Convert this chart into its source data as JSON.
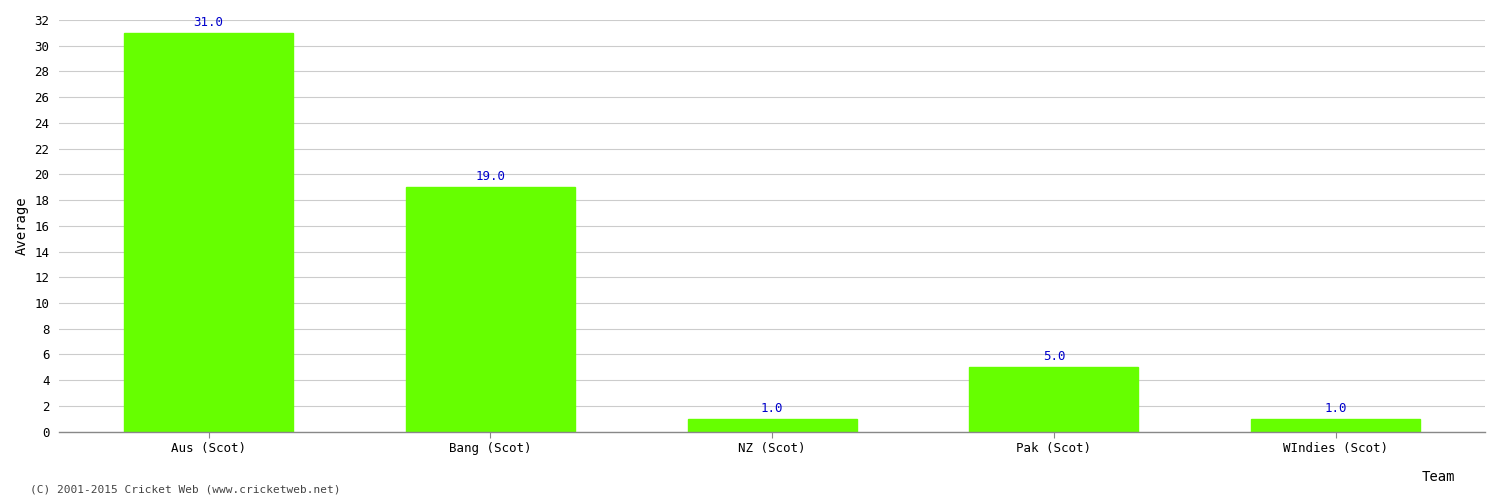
{
  "categories": [
    "Aus (Scot)",
    "Bang (Scot)",
    "NZ (Scot)",
    "Pak (Scot)",
    "WIndies (Scot)"
  ],
  "values": [
    31.0,
    19.0,
    1.0,
    5.0,
    1.0
  ],
  "bar_color": "#66ff00",
  "bar_edgecolor": "#66ff00",
  "ylabel": "Average",
  "xlabel": "Team",
  "ylim": [
    0,
    32
  ],
  "yticks": [
    0,
    2,
    4,
    6,
    8,
    10,
    12,
    14,
    16,
    18,
    20,
    22,
    24,
    26,
    28,
    30,
    32
  ],
  "label_color": "#0000cc",
  "label_fontsize": 9,
  "axis_label_fontsize": 10,
  "tick_fontsize": 9,
  "background_color": "#ffffff",
  "grid_color": "#cccccc",
  "footer_text": "(C) 2001-2015 Cricket Web (www.cricketweb.net)",
  "footer_fontsize": 8,
  "footer_color": "#444444"
}
